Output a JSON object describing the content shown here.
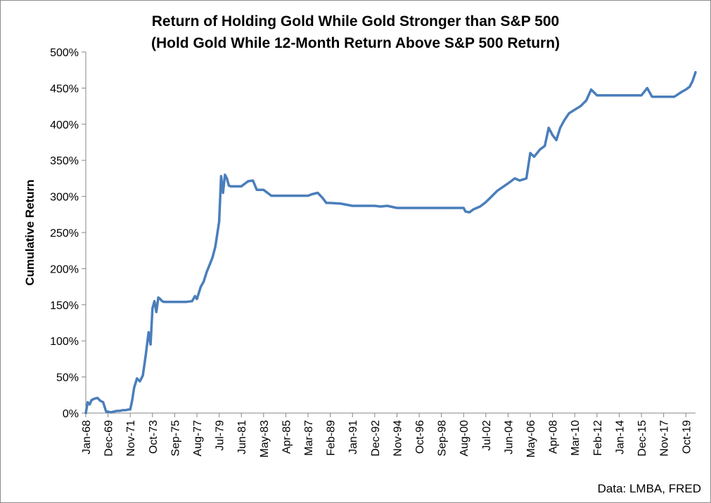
{
  "chart_data": {
    "type": "line",
    "title": "Return of Holding Gold While Gold Stronger than S&P 500",
    "subtitle": "(Hold Gold While 12-Month Return Above S&P 500 Return)",
    "xlabel": "",
    "ylabel": "Cumulative Return",
    "source": "Data: LMBA, FRED",
    "ylim": [
      0,
      5
    ],
    "y_ticks": [
      "0%",
      "50%",
      "100%",
      "150%",
      "200%",
      "250%",
      "300%",
      "350%",
      "400%",
      "450%",
      "500%"
    ],
    "x_tick_labels": [
      "Jan-68",
      "Dec-69",
      "Nov-71",
      "Oct-73",
      "Sep-75",
      "Aug-77",
      "Jul-79",
      "Jun-81",
      "May-83",
      "Apr-85",
      "Mar-87",
      "Feb-89",
      "Jan-91",
      "Dec-92",
      "Nov-94",
      "Oct-96",
      "Sep-98",
      "Aug-00",
      "Jul-02",
      "Jun-04",
      "May-06",
      "Apr-08",
      "Mar-10",
      "Feb-12",
      "Jan-14",
      "Dec-15",
      "Nov-17",
      "Oct-19"
    ],
    "x_range": [
      "Jan-68",
      "Aug-20"
    ],
    "grid": false,
    "line_color": "#4a7ebb",
    "series": [
      {
        "x": [
          "Jan-68",
          "Mar-68",
          "May-68",
          "Jul-68",
          "Oct-68",
          "Jan-69",
          "Apr-69",
          "Jul-69",
          "Oct-69",
          "Dec-69",
          "Mar-70",
          "Jun-70",
          "Sep-70",
          "Dec-70",
          "Mar-71",
          "Jun-71",
          "Sep-71",
          "Nov-71",
          "Jan-72",
          "Mar-72",
          "Jun-72",
          "Sep-72",
          "Dec-72",
          "Mar-73",
          "Jun-73",
          "Aug-73",
          "Oct-73",
          "Dec-73",
          "Feb-74",
          "Apr-74",
          "Jun-74",
          "Aug-74",
          "Oct-74",
          "Dec-74",
          "Mar-75",
          "Sep-75",
          "Mar-76",
          "Sep-76",
          "Mar-77",
          "Jun-77",
          "Aug-77",
          "Dec-77",
          "Mar-78",
          "Jun-78",
          "Sep-78",
          "Dec-78",
          "Mar-79",
          "Jul-79",
          "Sep-79",
          "Nov-79",
          "Jan-80",
          "Mar-80",
          "May-80",
          "Jul-80",
          "Sep-80",
          "Nov-80",
          "Feb-81",
          "Jun-81",
          "Jan-82",
          "Jun-82",
          "Oct-82",
          "Jan-83",
          "May-83",
          "Jan-84",
          "Apr-85",
          "Jan-86",
          "Jan-87",
          "Mar-87",
          "Jul-87",
          "Jan-88",
          "Jun-88",
          "Oct-88",
          "Feb-89",
          "Jan-90",
          "Jan-91",
          "Jan-92",
          "Dec-92",
          "Jun-93",
          "Jan-94",
          "Nov-94",
          "Oct-96",
          "Sep-98",
          "Aug-00",
          "Oct-00",
          "Feb-01",
          "Jun-01",
          "Jan-02",
          "Jul-02",
          "Jan-03",
          "Jul-03",
          "Jun-04",
          "Jan-05",
          "Jun-05",
          "Jan-06",
          "May-06",
          "Sep-06",
          "Mar-07",
          "Aug-07",
          "Dec-07",
          "Apr-08",
          "Aug-08",
          "Dec-08",
          "Apr-09",
          "Sep-09",
          "Mar-10",
          "Sep-10",
          "Mar-11",
          "Aug-11",
          "Feb-12",
          "Jan-13",
          "Jan-14",
          "Dec-15",
          "Jun-16",
          "Nov-16",
          "Nov-17",
          "Oct-18",
          "Jun-19",
          "Oct-19",
          "Feb-20",
          "May-20",
          "Aug-20"
        ],
        "values": [
          0.0,
          0.15,
          0.12,
          0.18,
          0.2,
          0.21,
          0.17,
          0.15,
          0.02,
          0.02,
          0.01,
          0.02,
          0.03,
          0.03,
          0.04,
          0.04,
          0.05,
          0.05,
          0.18,
          0.35,
          0.48,
          0.44,
          0.52,
          0.8,
          1.12,
          0.95,
          1.45,
          1.55,
          1.4,
          1.6,
          1.58,
          1.55,
          1.54,
          1.54,
          1.54,
          1.54,
          1.54,
          1.54,
          1.55,
          1.62,
          1.58,
          1.75,
          1.82,
          1.95,
          2.05,
          2.15,
          2.3,
          2.65,
          3.28,
          3.05,
          3.3,
          3.25,
          3.15,
          3.14,
          3.14,
          3.14,
          3.14,
          3.14,
          3.21,
          3.22,
          3.09,
          3.09,
          3.09,
          3.01,
          3.01,
          3.01,
          3.01,
          3.01,
          3.03,
          3.05,
          2.98,
          2.91,
          2.91,
          2.9,
          2.87,
          2.87,
          2.87,
          2.86,
          2.87,
          2.84,
          2.84,
          2.84,
          2.84,
          2.79,
          2.78,
          2.82,
          2.86,
          2.92,
          3.0,
          3.08,
          3.18,
          3.25,
          3.22,
          3.25,
          3.6,
          3.55,
          3.65,
          3.7,
          3.95,
          3.85,
          3.78,
          3.95,
          4.05,
          4.15,
          4.2,
          4.25,
          4.33,
          4.48,
          4.4,
          4.4,
          4.4,
          4.4,
          4.5,
          4.38,
          4.38,
          4.38,
          4.45,
          4.48,
          4.52,
          4.6,
          4.72
        ]
      }
    ]
  }
}
